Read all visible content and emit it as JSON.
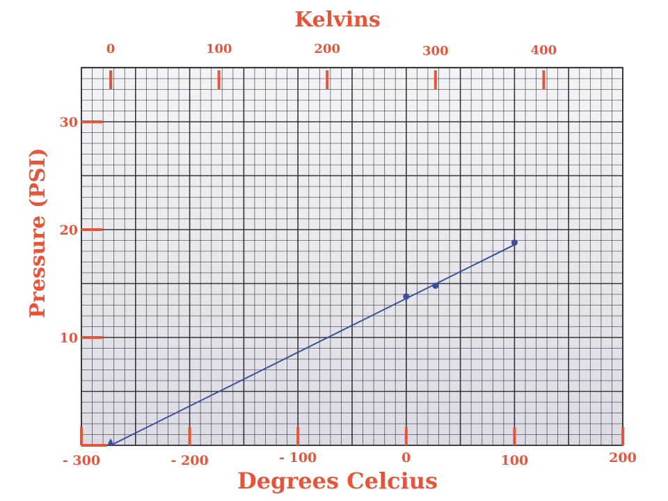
{
  "chart_data": {
    "type": "line",
    "title": "Kelvins",
    "xlabel": "Degrees Celcius",
    "ylabel": "Pressure (PSI)",
    "top_axis_label": "Kelvins",
    "xlim": [
      -300,
      200
    ],
    "ylim": [
      0,
      30
    ],
    "x_ticks": [
      -300,
      -200,
      -100,
      0,
      100,
      200
    ],
    "x_tick_labels": [
      "- 300",
      "- 200",
      "- 100",
      "0",
      "100",
      "200"
    ],
    "y_ticks": [
      10,
      20,
      30
    ],
    "y_tick_labels": [
      "10",
      "20",
      "30"
    ],
    "top_ticks_kelvin": [
      0,
      100,
      200,
      300,
      400
    ],
    "top_tick_labels": [
      "0",
      "100",
      "200",
      "300",
      "400"
    ],
    "kelvin_offset": 273,
    "grid": true,
    "series": [
      {
        "points": [
          {
            "x": -273,
            "y": 0
          },
          {
            "x": 0,
            "y": 13.8
          },
          {
            "x": 27,
            "y": 14.8
          },
          {
            "x": 100,
            "y": 18.8
          }
        ],
        "fit_line": [
          [
            -273,
            0
          ],
          [
            100,
            18.6
          ]
        ]
      }
    ],
    "colors": {
      "accent": "#e8543a",
      "line": "#3a4fa0",
      "grid": "#2a2a2a",
      "paper": "#e9e8ee"
    }
  }
}
